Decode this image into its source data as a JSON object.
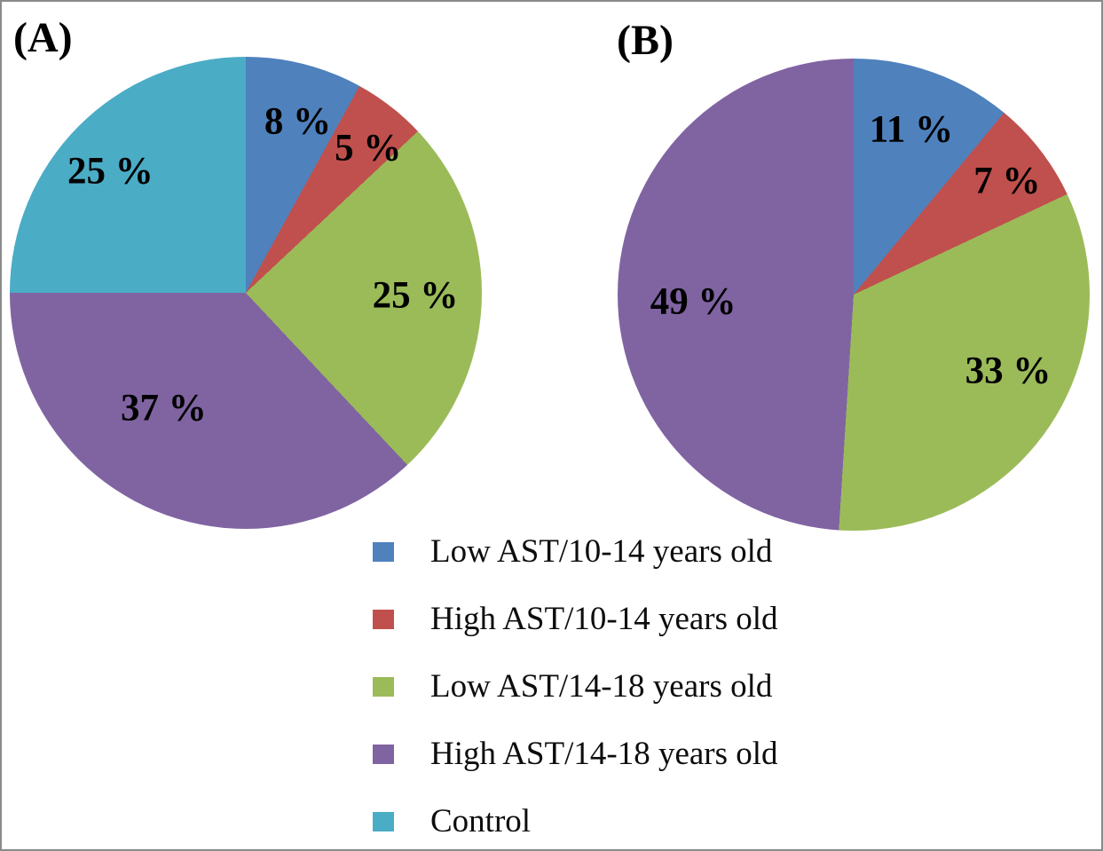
{
  "figure": {
    "panels": [
      {
        "label": "(A)"
      },
      {
        "label": "(B)"
      }
    ]
  },
  "colors": {
    "blue": "#4F81BD",
    "red": "#C0504D",
    "green": "#9BBB59",
    "purple": "#8064A2",
    "cyan": "#4BACC6",
    "frame_border": "#8a8a8a"
  },
  "legend": {
    "position": "bottom-center",
    "items": [
      {
        "label": "Low AST/10-14 years old",
        "color": "#4F81BD"
      },
      {
        "label": "High AST/10-14 years old",
        "color": "#C0504D"
      },
      {
        "label": "Low AST/14-18 years old",
        "color": "#9BBB59"
      },
      {
        "label": "High AST/14-18 years old",
        "color": "#8064A2"
      },
      {
        "label": "Control",
        "color": "#4BACC6"
      }
    ]
  },
  "chart_data": [
    {
      "type": "pie",
      "panel": "(A)",
      "start_angle_deg": 0,
      "direction": "clockwise",
      "grid": false,
      "slices": [
        {
          "category": "Low AST/10-14 years old",
          "value": 8,
          "label": "8 %",
          "color": "#4F81BD",
          "label_pos": [
            61.0,
            13.7
          ]
        },
        {
          "category": "High AST/10-14 years old",
          "value": 5,
          "label": "5 %",
          "color": "#C0504D",
          "label_pos": [
            75.9,
            19.4
          ]
        },
        {
          "category": "Low AST/14-18 years old",
          "value": 25,
          "label": "25 %",
          "color": "#9BBB59",
          "label_pos": [
            85.9,
            50.6
          ]
        },
        {
          "category": "High AST/14-18 years old",
          "value": 37,
          "label": "37 %",
          "color": "#8064A2",
          "label_pos": [
            32.6,
            74.4
          ]
        },
        {
          "category": "Control",
          "value": 25,
          "label": "25 %",
          "color": "#4BACC6",
          "label_pos": [
            21.3,
            24.2
          ]
        }
      ]
    },
    {
      "type": "pie",
      "panel": "(B)",
      "start_angle_deg": 0,
      "direction": "clockwise",
      "grid": false,
      "slices": [
        {
          "category": "Low AST/10-14 years old",
          "value": 11,
          "label": "11 %",
          "color": "#4F81BD",
          "label_pos": [
            62.2,
            15.0
          ]
        },
        {
          "category": "High AST/10-14 years old",
          "value": 7,
          "label": "7 %",
          "color": "#C0504D",
          "label_pos": [
            82.5,
            25.9
          ]
        },
        {
          "category": "Low AST/14-18 years old",
          "value": 33,
          "label": "33 %",
          "color": "#9BBB59",
          "label_pos": [
            82.7,
            66.2
          ]
        },
        {
          "category": "High AST/14-18 years old",
          "value": 49,
          "label": "49 %",
          "color": "#8064A2",
          "label_pos": [
            16.0,
            51.5
          ]
        }
      ]
    }
  ]
}
